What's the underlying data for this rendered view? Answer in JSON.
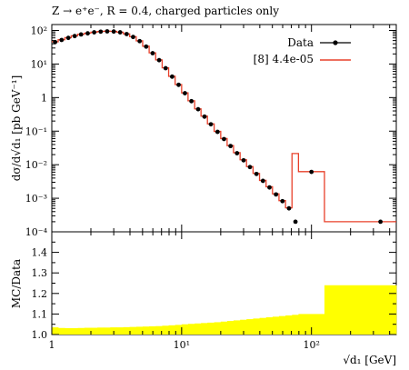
{
  "chart_data": [
    {
      "type": "line",
      "panel": "main",
      "title": "Z → e⁺e⁻, R = 0.4, charged particles only",
      "xlabel": "√d₁ [GeV]",
      "ylabel": "dσ/d√d₁ [pb GeV⁻¹]",
      "xscale": "log",
      "yscale": "log",
      "xlim": [
        1,
        450
      ],
      "ylim": [
        0.0001,
        150
      ],
      "x_tick_labels": [
        "1",
        "10¹",
        "10²"
      ],
      "y_tick_labels": [
        "10⁻⁴",
        "10⁻³",
        "10⁻²",
        "10⁻¹",
        "1",
        "10¹",
        "10²"
      ],
      "legend_position": "top-right",
      "series": [
        {
          "name": "Data",
          "style": "points",
          "color": "#000000",
          "x": [
            1.06,
            1.19,
            1.34,
            1.5,
            1.68,
            1.89,
            2.12,
            2.38,
            2.67,
            3.0,
            3.36,
            3.77,
            4.23,
            4.75,
            5.33,
            5.98,
            6.71,
            7.53,
            8.45,
            9.48,
            10.6,
            11.9,
            13.4,
            15.0,
            16.8,
            18.9,
            21.2,
            23.8,
            26.7,
            30.0,
            33.6,
            37.7,
            42.3,
            47.5,
            53.3,
            59.8,
            67.1,
            75.3,
            100.0,
            340.0
          ],
          "y": [
            45,
            52,
            60,
            68,
            76,
            82,
            88,
            92,
            94,
            93,
            88,
            78,
            64,
            48,
            33,
            21,
            13,
            7.5,
            4.2,
            2.4,
            1.35,
            0.78,
            0.45,
            0.27,
            0.16,
            0.095,
            0.058,
            0.036,
            0.022,
            0.0135,
            0.0085,
            0.0053,
            0.0033,
            0.0021,
            0.0013,
            0.00082,
            0.0005,
            0.0002,
            0.0061,
            0.0002
          ]
        },
        {
          "name": "[8] 4.4e-05",
          "style": "step",
          "color": "#e8402a",
          "edges": [
            1.0,
            1.12,
            1.26,
            1.41,
            1.58,
            1.78,
            2.0,
            2.24,
            2.51,
            2.82,
            3.16,
            3.55,
            3.98,
            4.47,
            5.01,
            5.62,
            6.31,
            7.08,
            7.94,
            8.91,
            10.0,
            11.2,
            12.6,
            14.1,
            15.8,
            17.8,
            20.0,
            22.4,
            25.1,
            28.2,
            31.6,
            35.5,
            39.8,
            44.7,
            50.1,
            56.2,
            63.1,
            70.8,
            79.4,
            125.9,
            450.0
          ],
          "values": [
            46,
            53,
            61,
            69,
            77,
            83,
            89,
            93,
            95,
            94,
            89,
            79,
            65,
            49,
            34,
            21.5,
            13.3,
            7.7,
            4.3,
            2.45,
            1.38,
            0.8,
            0.46,
            0.28,
            0.165,
            0.098,
            0.06,
            0.037,
            0.0228,
            0.014,
            0.0088,
            0.0055,
            0.0034,
            0.0022,
            0.00135,
            0.00085,
            0.00052,
            0.0215,
            0.0062,
            0.0002
          ]
        }
      ]
    },
    {
      "type": "area",
      "panel": "ratio",
      "xlabel": "√d₁ [GeV]",
      "ylabel": "MC/Data",
      "xscale": "log",
      "xlim": [
        1,
        450
      ],
      "ylim": [
        1.0,
        1.5
      ],
      "y_tick_labels": [
        "1.0",
        "1.1",
        "1.2",
        "1.3",
        "1.4"
      ],
      "x_tick_labels": [
        "1",
        "10¹",
        "10²"
      ],
      "series": [
        {
          "name": "",
          "style": "band",
          "color": "#ffff00",
          "edges": [
            1.0,
            1.12,
            1.26,
            1.41,
            1.58,
            1.78,
            2.0,
            2.24,
            2.51,
            2.82,
            3.16,
            3.55,
            3.98,
            4.47,
            5.01,
            5.62,
            6.31,
            7.08,
            7.94,
            8.91,
            10.0,
            11.2,
            12.6,
            14.1,
            15.8,
            17.8,
            20.0,
            22.4,
            25.1,
            28.2,
            31.6,
            35.5,
            39.8,
            44.7,
            50.1,
            56.2,
            63.1,
            70.8,
            79.4,
            125.9,
            450.0
          ],
          "values": [
            1.035,
            1.032,
            1.031,
            1.031,
            1.032,
            1.033,
            1.033,
            1.034,
            1.034,
            1.035,
            1.035,
            1.036,
            1.037,
            1.038,
            1.039,
            1.04,
            1.041,
            1.043,
            1.045,
            1.047,
            1.05,
            1.052,
            1.054,
            1.056,
            1.058,
            1.06,
            1.063,
            1.066,
            1.069,
            1.072,
            1.075,
            1.078,
            1.081,
            1.084,
            1.087,
            1.09,
            1.093,
            1.096,
            1.1,
            1.24
          ]
        }
      ]
    }
  ]
}
